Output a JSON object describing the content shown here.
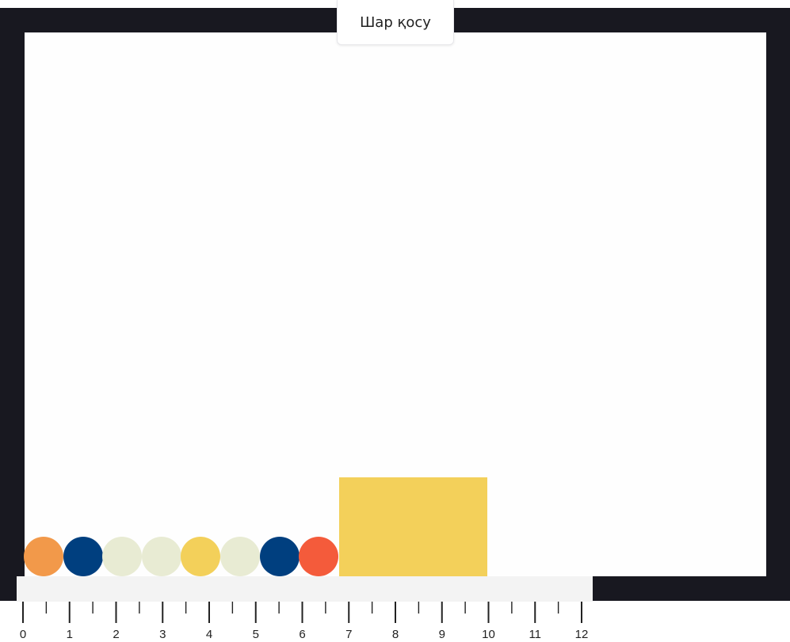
{
  "toolbar": {
    "add_ball_label": "Шар қосу"
  },
  "colors": {
    "frame": "#181820",
    "canvas": "#fefefe",
    "ruler_bg": "#f3f3f3",
    "tick": "#222222"
  },
  "balls": [
    {
      "color": "#f2994a",
      "name": "orange"
    },
    {
      "color": "#003f7f",
      "name": "navy"
    },
    {
      "color": "#e8ebd3",
      "name": "cream"
    },
    {
      "color": "#e8ebd3",
      "name": "cream"
    },
    {
      "color": "#f3d05a",
      "name": "yellow"
    },
    {
      "color": "#e8ebd3",
      "name": "cream"
    },
    {
      "color": "#003f7f",
      "name": "navy"
    },
    {
      "color": "#f45b3b",
      "name": "red"
    }
  ],
  "block": {
    "color": "#f3d05a"
  },
  "ruler": {
    "labels": [
      "0",
      "1",
      "2",
      "3",
      "4",
      "5",
      "6",
      "7",
      "8",
      "9",
      "10",
      "11",
      "12"
    ],
    "minor_per_unit": 10
  }
}
